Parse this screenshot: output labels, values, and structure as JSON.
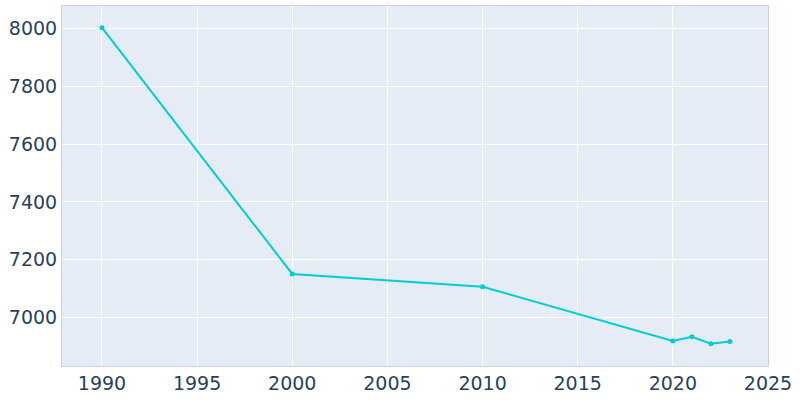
{
  "chart_data": {
    "type": "line",
    "x": [
      1990,
      2000,
      2010,
      2020,
      2021,
      2022,
      2023
    ],
    "values": [
      8004,
      7150,
      7106,
      6918,
      6932,
      6908,
      6916
    ],
    "color": "#00ced1",
    "marker": "circle",
    "xlim": [
      1987.9,
      2025
    ],
    "xticks": [
      1990,
      1995,
      2000,
      2005,
      2010,
      2015,
      2020,
      2025
    ],
    "ylim": [
      6831,
      8079
    ],
    "yticks": [
      7000,
      7200,
      7400,
      7600,
      7800,
      8000
    ],
    "grid": true
  }
}
